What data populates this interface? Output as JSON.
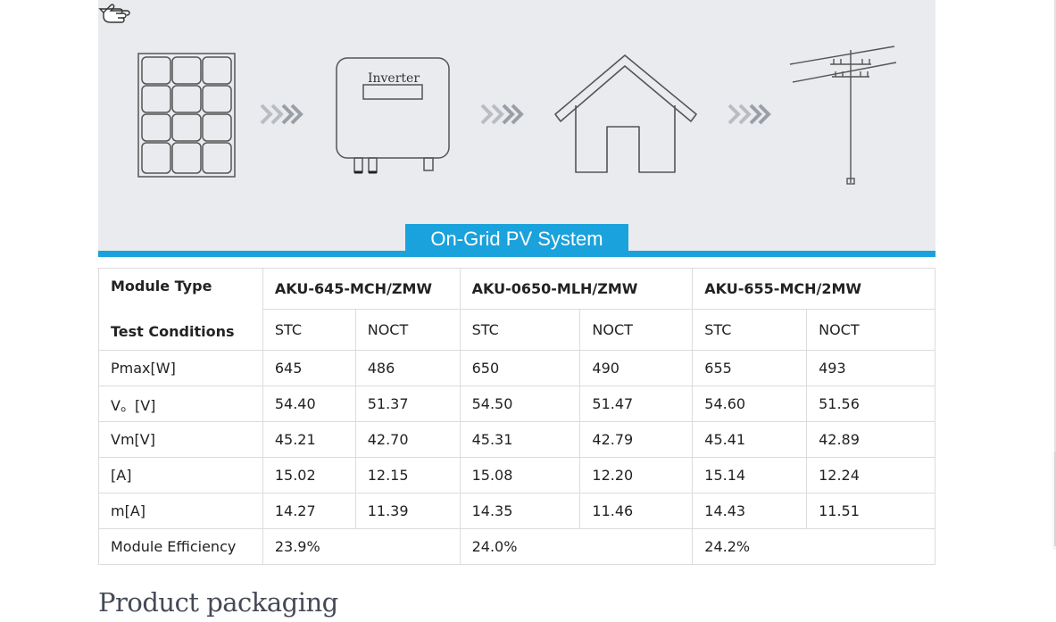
{
  "banner": {
    "label": "On-Grid PV System",
    "inverter_text": "Inverter"
  },
  "table": {
    "row_header_module": "Module Type",
    "row_header_test": "Test Conditions",
    "models": [
      "AKU-645-MCH/ZMW",
      "AKU-0650-MLH/ZMW",
      "AKU-655-MCH/2MW"
    ],
    "conditions": [
      "STC",
      "NOCT",
      "STC",
      "NOCT",
      "STC",
      "NOCT"
    ],
    "rows": [
      {
        "label": "Pmax[W]",
        "values": [
          "645",
          "486",
          "650",
          "490",
          "655",
          "493"
        ]
      },
      {
        "label": "V。[V]",
        "values": [
          "54.40",
          "51.37",
          "54.50",
          "51.47",
          "54.60",
          "51.56"
        ]
      },
      {
        "label": "Vm[V]",
        "values": [
          "45.21",
          "42.70",
          "45.31",
          "42.79",
          "45.41",
          "42.89"
        ]
      },
      {
        "label": "[A]",
        "values": [
          "15.02",
          "12.15",
          "15.08",
          "12.20",
          "15.14",
          "12.24"
        ]
      },
      {
        "label": "m[A]",
        "values": [
          "14.27",
          "11.39",
          "14.35",
          "11.46",
          "14.43",
          "11.51"
        ]
      }
    ],
    "efficiency_label": "Module Efficiency",
    "efficiency_values": [
      "23.9%",
      "24.0%",
      "24.2%"
    ]
  },
  "section": {
    "title": "Product packaging"
  }
}
